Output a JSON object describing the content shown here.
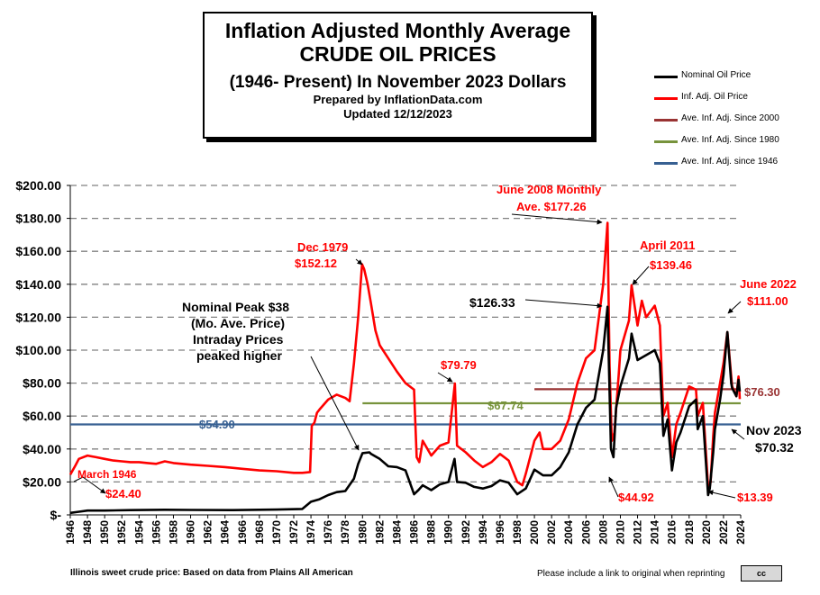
{
  "title": {
    "line1": "Inflation Adjusted Monthly Average",
    "line2": "CRUDE OIL PRICES",
    "line3": "(1946- Present) In November 2023 Dollars",
    "line4": "Prepared by InflationData.com",
    "line5": "Updated 12/12/2023"
  },
  "legend": [
    {
      "label": "Nominal Oil Price",
      "color": "#000000"
    },
    {
      "label": "Inf. Adj. Oil Price",
      "color": "#ff0000"
    },
    {
      "label": "Ave. Inf. Adj. Since 2000",
      "color": "#993333"
    },
    {
      "label": "Ave. Inf. Adj. Since 1980",
      "color": "#77933c"
    },
    {
      "label": "Ave. Inf. Adj. since 1946",
      "color": "#376092"
    }
  ],
  "footer": {
    "source": "Illinois sweet crude price: Based on data from Plains All American",
    "note": "Please include a link to original when reprinting",
    "license": "cc"
  },
  "chart_data": {
    "type": "line",
    "xlim": [
      1946,
      2024
    ],
    "ylim": [
      0,
      200
    ],
    "y_ticks": [
      "$-",
      "$20.00",
      "$40.00",
      "$60.00",
      "$80.00",
      "$100.00",
      "$120.00",
      "$140.00",
      "$160.00",
      "$180.00",
      "$200.00"
    ],
    "x_ticks": [
      "1946",
      "1948",
      "1950",
      "1952",
      "1954",
      "1956",
      "1958",
      "1960",
      "1962",
      "1964",
      "1966",
      "1968",
      "1970",
      "1972",
      "1974",
      "1976",
      "1978",
      "1980",
      "1982",
      "1984",
      "1986",
      "1988",
      "1990",
      "1992",
      "1994",
      "1996",
      "1998",
      "2000",
      "2002",
      "2004",
      "2006",
      "2008",
      "2010",
      "2012",
      "2014",
      "2016",
      "2018",
      "2020",
      "2022",
      "2024"
    ],
    "grid": true,
    "series": [
      {
        "name": "Nominal Oil Price",
        "color": "#000000",
        "points": [
          [
            1946,
            1.2
          ],
          [
            1947,
            1.9
          ],
          [
            1948,
            2.6
          ],
          [
            1950,
            2.6
          ],
          [
            1953,
            2.9
          ],
          [
            1957,
            3.1
          ],
          [
            1960,
            3.0
          ],
          [
            1965,
            2.9
          ],
          [
            1970,
            3.2
          ],
          [
            1973,
            3.6
          ],
          [
            1974,
            8.0
          ],
          [
            1975,
            9.5
          ],
          [
            1976,
            12.0
          ],
          [
            1977,
            13.8
          ],
          [
            1978,
            14.5
          ],
          [
            1979,
            22.0
          ],
          [
            1979.5,
            31.0
          ],
          [
            1980,
            37.5
          ],
          [
            1980.8,
            38.0
          ],
          [
            1981,
            37.0
          ],
          [
            1982,
            34.0
          ],
          [
            1983,
            29.5
          ],
          [
            1984,
            29.0
          ],
          [
            1985,
            27.0
          ],
          [
            1986,
            12.5
          ],
          [
            1986.5,
            15.0
          ],
          [
            1987,
            18.0
          ],
          [
            1988,
            15.0
          ],
          [
            1989,
            18.5
          ],
          [
            1990,
            20.0
          ],
          [
            1990.7,
            34.0
          ],
          [
            1991,
            20.0
          ],
          [
            1992,
            19.5
          ],
          [
            1993,
            17.0
          ],
          [
            1994,
            16.0
          ],
          [
            1995,
            17.5
          ],
          [
            1996,
            21.0
          ],
          [
            1997,
            19.5
          ],
          [
            1998,
            12.5
          ],
          [
            1999,
            16.0
          ],
          [
            2000,
            27.5
          ],
          [
            2001,
            24.0
          ],
          [
            2002,
            24.0
          ],
          [
            2003,
            29.0
          ],
          [
            2004,
            38.0
          ],
          [
            2005,
            55.0
          ],
          [
            2006,
            65.0
          ],
          [
            2007,
            70.0
          ],
          [
            2008,
            100.0
          ],
          [
            2008.5,
            126.33
          ],
          [
            2008.9,
            40.0
          ],
          [
            2009.2,
            35.0
          ],
          [
            2009.5,
            65.0
          ],
          [
            2010,
            78.0
          ],
          [
            2011,
            95.0
          ],
          [
            2011.3,
            110.0
          ],
          [
            2012,
            94.0
          ],
          [
            2013,
            97.0
          ],
          [
            2014,
            100.0
          ],
          [
            2014.6,
            92.0
          ],
          [
            2015,
            48.0
          ],
          [
            2015.5,
            58.0
          ],
          [
            2016,
            27.0
          ],
          [
            2016.5,
            44.0
          ],
          [
            2017,
            50.0
          ],
          [
            2018,
            66.0
          ],
          [
            2018.8,
            70.0
          ],
          [
            2019,
            52.0
          ],
          [
            2019.6,
            60.0
          ],
          [
            2020.2,
            12.0
          ],
          [
            2020.4,
            16.0
          ],
          [
            2020.8,
            38.0
          ],
          [
            2021,
            52.0
          ],
          [
            2021.6,
            70.0
          ],
          [
            2022,
            85.0
          ],
          [
            2022.45,
            111.0
          ],
          [
            2022.9,
            80.0
          ],
          [
            2023,
            77.0
          ],
          [
            2023.5,
            72.0
          ],
          [
            2023.75,
            82.0
          ],
          [
            2023.9,
            75.0
          ]
        ]
      },
      {
        "name": "Inf. Adj. Oil Price",
        "color": "#ff0000",
        "points": [
          [
            1946,
            24.4
          ],
          [
            1946.6,
            30.0
          ],
          [
            1947,
            34.0
          ],
          [
            1948,
            36.0
          ],
          [
            1949,
            35.0
          ],
          [
            1950,
            34.0
          ],
          [
            1951,
            33.0
          ],
          [
            1952,
            32.5
          ],
          [
            1953,
            32.0
          ],
          [
            1954,
            32.0
          ],
          [
            1955,
            31.5
          ],
          [
            1956,
            31.0
          ],
          [
            1957,
            32.5
          ],
          [
            1958,
            31.5
          ],
          [
            1960,
            30.5
          ],
          [
            1962,
            29.8
          ],
          [
            1964,
            29.0
          ],
          [
            1966,
            28.0
          ],
          [
            1968,
            27.0
          ],
          [
            1970,
            26.5
          ],
          [
            1972,
            25.5
          ],
          [
            1973,
            25.5
          ],
          [
            1973.9,
            26.0
          ],
          [
            1974.1,
            54.0
          ],
          [
            1974.4,
            56.0
          ],
          [
            1974.7,
            62.0
          ],
          [
            1975,
            64.0
          ],
          [
            1976,
            70.0
          ],
          [
            1977,
            73.0
          ],
          [
            1978,
            71.0
          ],
          [
            1978.5,
            69.0
          ],
          [
            1979,
            92.0
          ],
          [
            1979.5,
            120.0
          ],
          [
            1979.95,
            152.12
          ],
          [
            1980.2,
            149.0
          ],
          [
            1980.6,
            140.0
          ],
          [
            1981,
            128.0
          ],
          [
            1981.5,
            112.0
          ],
          [
            1982,
            103.0
          ],
          [
            1983,
            95.0
          ],
          [
            1984,
            87.0
          ],
          [
            1985,
            80.0
          ],
          [
            1986,
            76.0
          ],
          [
            1986.3,
            35.0
          ],
          [
            1986.6,
            32.0
          ],
          [
            1987,
            45.0
          ],
          [
            1988,
            36.0
          ],
          [
            1989,
            42.0
          ],
          [
            1990,
            44.0
          ],
          [
            1990.75,
            79.79
          ],
          [
            1991,
            42.0
          ],
          [
            1992,
            38.0
          ],
          [
            1993,
            33.0
          ],
          [
            1994,
            29.0
          ],
          [
            1995,
            32.0
          ],
          [
            1996,
            37.0
          ],
          [
            1997,
            33.0
          ],
          [
            1998,
            20.0
          ],
          [
            1998.6,
            18.0
          ],
          [
            1999,
            25.0
          ],
          [
            2000,
            45.0
          ],
          [
            2000.6,
            50.0
          ],
          [
            2001,
            40.0
          ],
          [
            2002,
            40.0
          ],
          [
            2003,
            45.0
          ],
          [
            2004,
            58.0
          ],
          [
            2005,
            80.0
          ],
          [
            2006,
            95.0
          ],
          [
            2007,
            100.0
          ],
          [
            2008,
            140.0
          ],
          [
            2008.5,
            177.26
          ],
          [
            2008.75,
            90.0
          ],
          [
            2009,
            44.92
          ],
          [
            2009.3,
            50.0
          ],
          [
            2009.8,
            85.0
          ],
          [
            2010,
            100.0
          ],
          [
            2011,
            118.0
          ],
          [
            2011.3,
            139.46
          ],
          [
            2012,
            115.0
          ],
          [
            2012.5,
            130.0
          ],
          [
            2013,
            120.0
          ],
          [
            2014,
            127.0
          ],
          [
            2014.6,
            115.0
          ],
          [
            2015,
            60.0
          ],
          [
            2015.5,
            68.0
          ],
          [
            2016,
            35.0
          ],
          [
            2016.5,
            55.0
          ],
          [
            2017,
            62.0
          ],
          [
            2018,
            78.0
          ],
          [
            2018.8,
            76.0
          ],
          [
            2019,
            60.0
          ],
          [
            2019.6,
            68.0
          ],
          [
            2020.25,
            13.39
          ],
          [
            2020.5,
            20.0
          ],
          [
            2020.8,
            48.0
          ],
          [
            2021,
            62.0
          ],
          [
            2021.6,
            80.0
          ],
          [
            2022,
            92.0
          ],
          [
            2022.45,
            111.0
          ],
          [
            2022.9,
            84.0
          ],
          [
            2023,
            78.0
          ],
          [
            2023.5,
            72.0
          ],
          [
            2023.75,
            84.0
          ],
          [
            2023.9,
            70.32
          ]
        ]
      },
      {
        "name": "Ave. Inf. Adj. Since 2000",
        "color": "#993333",
        "points": [
          [
            2000,
            76.3
          ],
          [
            2024,
            76.3
          ]
        ]
      },
      {
        "name": "Ave. Inf. Adj. Since 1980",
        "color": "#77933c",
        "points": [
          [
            1980,
            67.74
          ],
          [
            2024,
            67.74
          ]
        ]
      },
      {
        "name": "Ave. Inf. Adj. since 1946",
        "color": "#376092",
        "points": [
          [
            1946,
            54.9
          ],
          [
            2024,
            54.9
          ]
        ]
      }
    ],
    "annotations": [
      {
        "text": "March 1946",
        "color": "#ff0000"
      },
      {
        "text": "$24.40",
        "color": "#ff0000"
      },
      {
        "text": "Dec 1979",
        "color": "#ff0000"
      },
      {
        "text": "$152.12",
        "color": "#ff0000"
      },
      {
        "text": "Nominal Peak $38",
        "color": "#000000"
      },
      {
        "text": "(Mo. Ave. Price)",
        "color": "#000000"
      },
      {
        "text": "Intraday Prices",
        "color": "#000000"
      },
      {
        "text": "peaked higher",
        "color": "#000000"
      },
      {
        "text": "$79.79",
        "color": "#ff0000"
      },
      {
        "text": "June 2008 Monthly",
        "color": "#ff0000"
      },
      {
        "text": "Ave. $177.26",
        "color": "#ff0000"
      },
      {
        "text": "$126.33",
        "color": "#000000"
      },
      {
        "text": "April 2011",
        "color": "#ff0000"
      },
      {
        "text": "$139.46",
        "color": "#ff0000"
      },
      {
        "text": "June 2022",
        "color": "#ff0000"
      },
      {
        "text": "$111.00",
        "color": "#ff0000"
      },
      {
        "text": "$76.30",
        "color": "#993333"
      },
      {
        "text": "$67.74",
        "color": "#77933c"
      },
      {
        "text": "$54.90",
        "color": "#376092"
      },
      {
        "text": "Nov 2023",
        "color": "#000000"
      },
      {
        "text": "$70.32",
        "color": "#000000"
      },
      {
        "text": "$44.92",
        "color": "#ff0000"
      },
      {
        "text": "$13.39",
        "color": "#ff0000"
      }
    ]
  }
}
